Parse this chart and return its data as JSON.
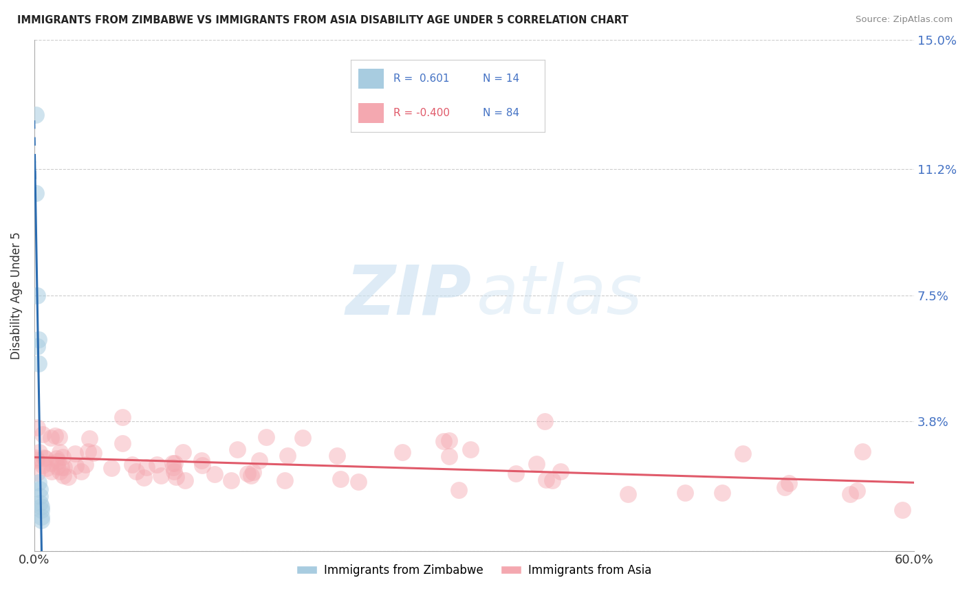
{
  "title": "IMMIGRANTS FROM ZIMBABWE VS IMMIGRANTS FROM ASIA DISABILITY AGE UNDER 5 CORRELATION CHART",
  "source": "Source: ZipAtlas.com",
  "ylabel": "Disability Age Under 5",
  "xlim": [
    0,
    0.6
  ],
  "ylim": [
    0,
    0.15
  ],
  "ytick_vals": [
    0.0,
    0.038,
    0.075,
    0.112,
    0.15
  ],
  "ytick_labels": [
    "",
    "3.8%",
    "7.5%",
    "11.2%",
    "15.0%"
  ],
  "xtick_vals": [
    0.0,
    0.1,
    0.2,
    0.3,
    0.4,
    0.5,
    0.6
  ],
  "xtick_labels": [
    "0.0%",
    "",
    "",
    "",
    "",
    "",
    "60.0%"
  ],
  "color_zimbabwe": "#a8cce0",
  "color_asia": "#f4a8b0",
  "color_line_zimbabwe": "#2b6cb0",
  "color_line_asia": "#e05a6a",
  "background_color": "#ffffff",
  "zimbabwe_x": [
    0.001,
    0.001,
    0.002,
    0.002,
    0.003,
    0.003,
    0.003,
    0.004,
    0.004,
    0.004,
    0.005,
    0.005,
    0.005,
    0.005
  ],
  "zimbabwe_y": [
    0.128,
    0.105,
    0.075,
    0.06,
    0.062,
    0.055,
    0.02,
    0.018,
    0.016,
    0.014,
    0.013,
    0.012,
    0.01,
    0.009
  ]
}
